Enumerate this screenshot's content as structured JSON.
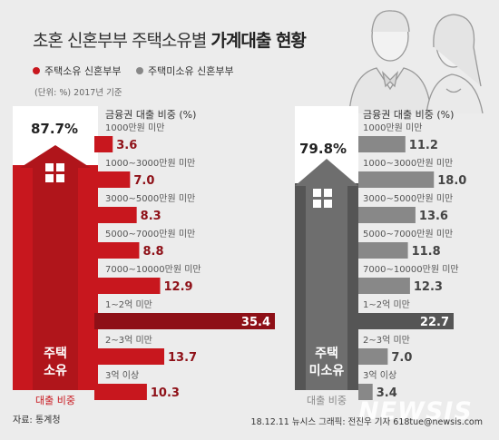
{
  "title": {
    "normal": "초혼 신혼부부 주택소유별",
    "bold": "가계대출 현황"
  },
  "legend": [
    {
      "label": "주택소유 신혼부부",
      "color": "#c8171e"
    },
    {
      "label": "주택미소유 신혼부부",
      "color": "#888888"
    }
  ],
  "unit_note": "(단위: %) 2017년 기준",
  "source": "자료: 통계청",
  "credit": "18.12.11  뉴시스 그래픽: 전진우 기자 618tue@newsis.com",
  "watermark": "NEWSIS",
  "colors": {
    "owner": "#c8171e",
    "owner_dark": "#8e1017",
    "nonowner": "#888888",
    "nonowner_dark": "#555555"
  },
  "owner_panel": {
    "percent": "87.7%",
    "label_line1": "주택",
    "label_line2": "소유",
    "caption": "대출 비중"
  },
  "nonowner_panel": {
    "percent": "79.8%",
    "label_line1": "주택",
    "label_line2": "미소유",
    "caption": "대출 비중"
  },
  "chart_data": [
    {
      "type": "bar",
      "title": "금융권 대출 비중 (%)",
      "series_name": "주택소유 신혼부부",
      "categories": [
        "1000만원 미만",
        "1000~3000만원 미만",
        "3000~5000만원 미만",
        "5000~7000만원 미만",
        "7000~10000만원 미만",
        "1~2억 미만",
        "2~3억 미만",
        "3억 이상"
      ],
      "values": [
        3.6,
        7.0,
        8.3,
        8.8,
        12.9,
        35.4,
        13.7,
        10.3
      ],
      "highlight_index": 5
    },
    {
      "type": "bar",
      "title": "금융권 대출 비중 (%)",
      "series_name": "주택미소유 신혼부부",
      "categories": [
        "1000만원 미만",
        "1000~3000만원 미만",
        "3000~5000만원 미만",
        "5000~7000만원 미만",
        "7000~10000만원 미만",
        "1~2억 미만",
        "2~3억 미만",
        "3억 이상"
      ],
      "values": [
        11.2,
        18.0,
        13.6,
        11.8,
        12.3,
        22.7,
        7.0,
        3.4
      ],
      "highlight_index": 5
    }
  ]
}
